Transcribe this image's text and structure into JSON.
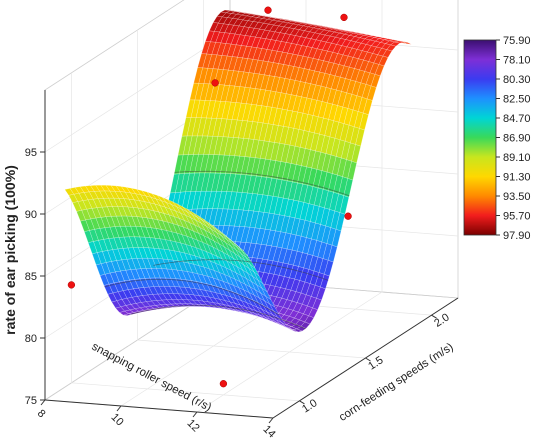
{
  "chart_data": {
    "type": "surface3d",
    "zlabel": "rate of ear picking (100%)",
    "xlabel": "snapping roller speed (r/s)",
    "ylabel": "corn-feeding speeds (m/s)",
    "z_ticks": [
      "75",
      "80",
      "85",
      "90",
      "95"
    ],
    "x_ticks": [
      "8",
      "10",
      "12",
      "14"
    ],
    "y_ticks": [
      "1.0",
      "1.5",
      "2.0"
    ],
    "colorbar": {
      "labels": [
        "75.90",
        "78.10",
        "80.30",
        "82.50",
        "84.70",
        "86.90",
        "89.10",
        "91.30",
        "93.50",
        "95.70",
        "97.90"
      ],
      "colors": [
        "#3b0f70",
        "#7e2fd6",
        "#3b3bf0",
        "#1e90ff",
        "#00d5d5",
        "#39d95a",
        "#c8e61e",
        "#ffd800",
        "#ff8a00",
        "#f21d1d",
        "#7a0000"
      ]
    },
    "scatter": [
      {
        "x": 8.0,
        "y": 1.0,
        "z": 82.9
      },
      {
        "x": 12.0,
        "y": 1.0,
        "z": 75.9
      },
      {
        "x": 9.0,
        "y": 1.8,
        "z": 93.9
      },
      {
        "x": 12.5,
        "y": 1.8,
        "z": 84.0
      },
      {
        "x": 9.0,
        "y": 2.2,
        "z": 97.0
      },
      {
        "x": 11.0,
        "y": 2.2,
        "z": 96.9
      }
    ]
  }
}
